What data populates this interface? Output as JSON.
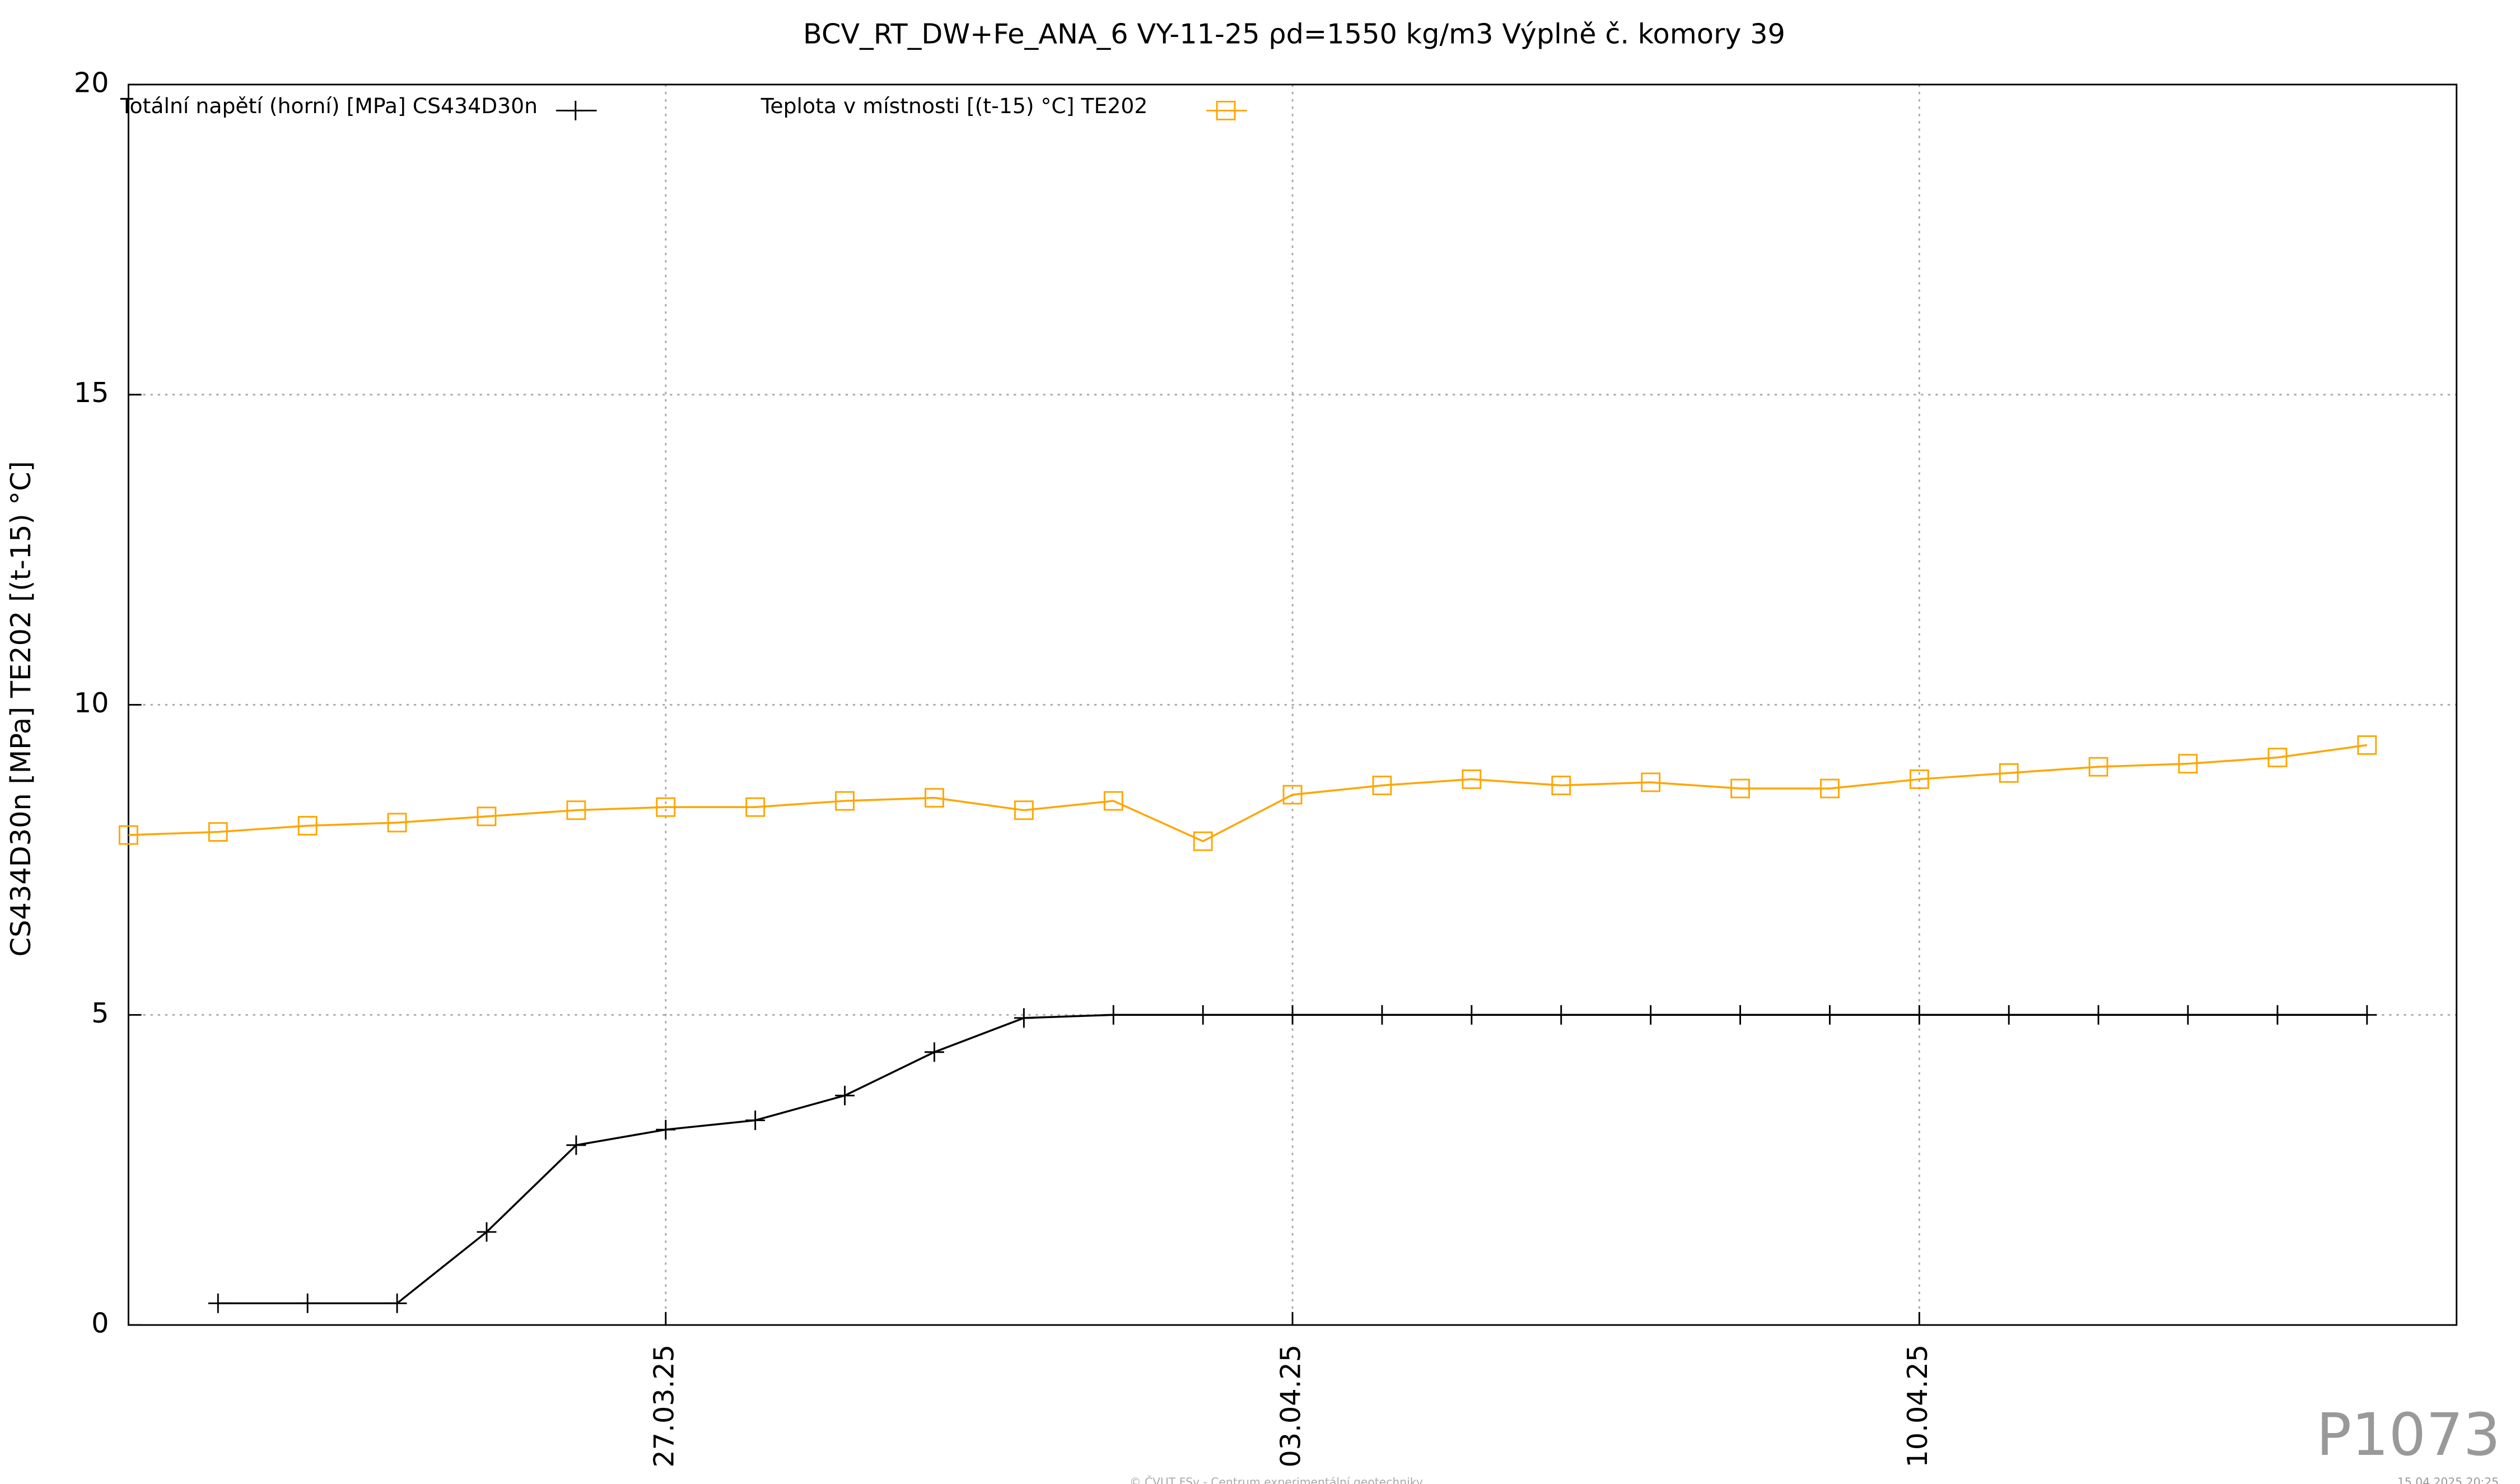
{
  "chart_data": {
    "type": "line",
    "title": "BCV_RT_DW+Fe_ANA_6 VY-11-25 ρd=1550 kg/m3 Výplně č. komory 39",
    "y_label": "CS434D30n [MPa] TE202 [(t-15) °C]",
    "x": [
      "21.03.25",
      "22.03.25",
      "23.03.25",
      "24.03.25",
      "25.03.25",
      "26.03.25",
      "27.03.25",
      "28.03.25",
      "29.03.25",
      "30.03.25",
      "31.03.25",
      "01.04.25",
      "02.04.25",
      "03.04.25",
      "04.04.25",
      "05.04.25",
      "06.04.25",
      "07.04.25",
      "08.04.25",
      "09.04.25",
      "10.04.25",
      "11.04.25",
      "12.04.25",
      "13.04.25",
      "14.04.25",
      "15.04.25"
    ],
    "series": [
      {
        "name": "Totální napětí (horní) [MPa] CS434D30n",
        "color": "#000000",
        "marker": "plus",
        "values": [
          null,
          0.35,
          0.35,
          0.35,
          1.5,
          2.9,
          3.15,
          3.3,
          3.7,
          4.4,
          4.95,
          5.0,
          5.0,
          5.0,
          5.0,
          5.0,
          5.0,
          5.0,
          5.0,
          5.0,
          5.0,
          5.0,
          5.0,
          5.0,
          5.0,
          5.0
        ]
      },
      {
        "name": "Teplota v místnosti [(t-15) °C] TE202",
        "color": "#ffa500",
        "marker": "square",
        "values": [
          7.9,
          7.95,
          8.05,
          8.1,
          8.2,
          8.3,
          8.35,
          8.35,
          8.45,
          8.5,
          8.3,
          8.45,
          7.8,
          8.55,
          8.7,
          8.8,
          8.7,
          8.75,
          8.65,
          8.65,
          8.8,
          8.9,
          9.0,
          9.05,
          9.15,
          9.35
        ]
      }
    ],
    "xlim": [
      "21.03.25",
      "16.04.25"
    ],
    "xticks": [
      "27.03.25",
      "03.04.25",
      "10.04.25"
    ],
    "ylim": [
      0,
      20
    ],
    "yticks": [
      0,
      5,
      10,
      15,
      20
    ],
    "grid": true,
    "legend": "top-left",
    "credit": "© ČVUT FSv - Centrum experimentální geotechniky",
    "timestamp": "15.04.2025 20:25",
    "plot_id": "P1073"
  }
}
